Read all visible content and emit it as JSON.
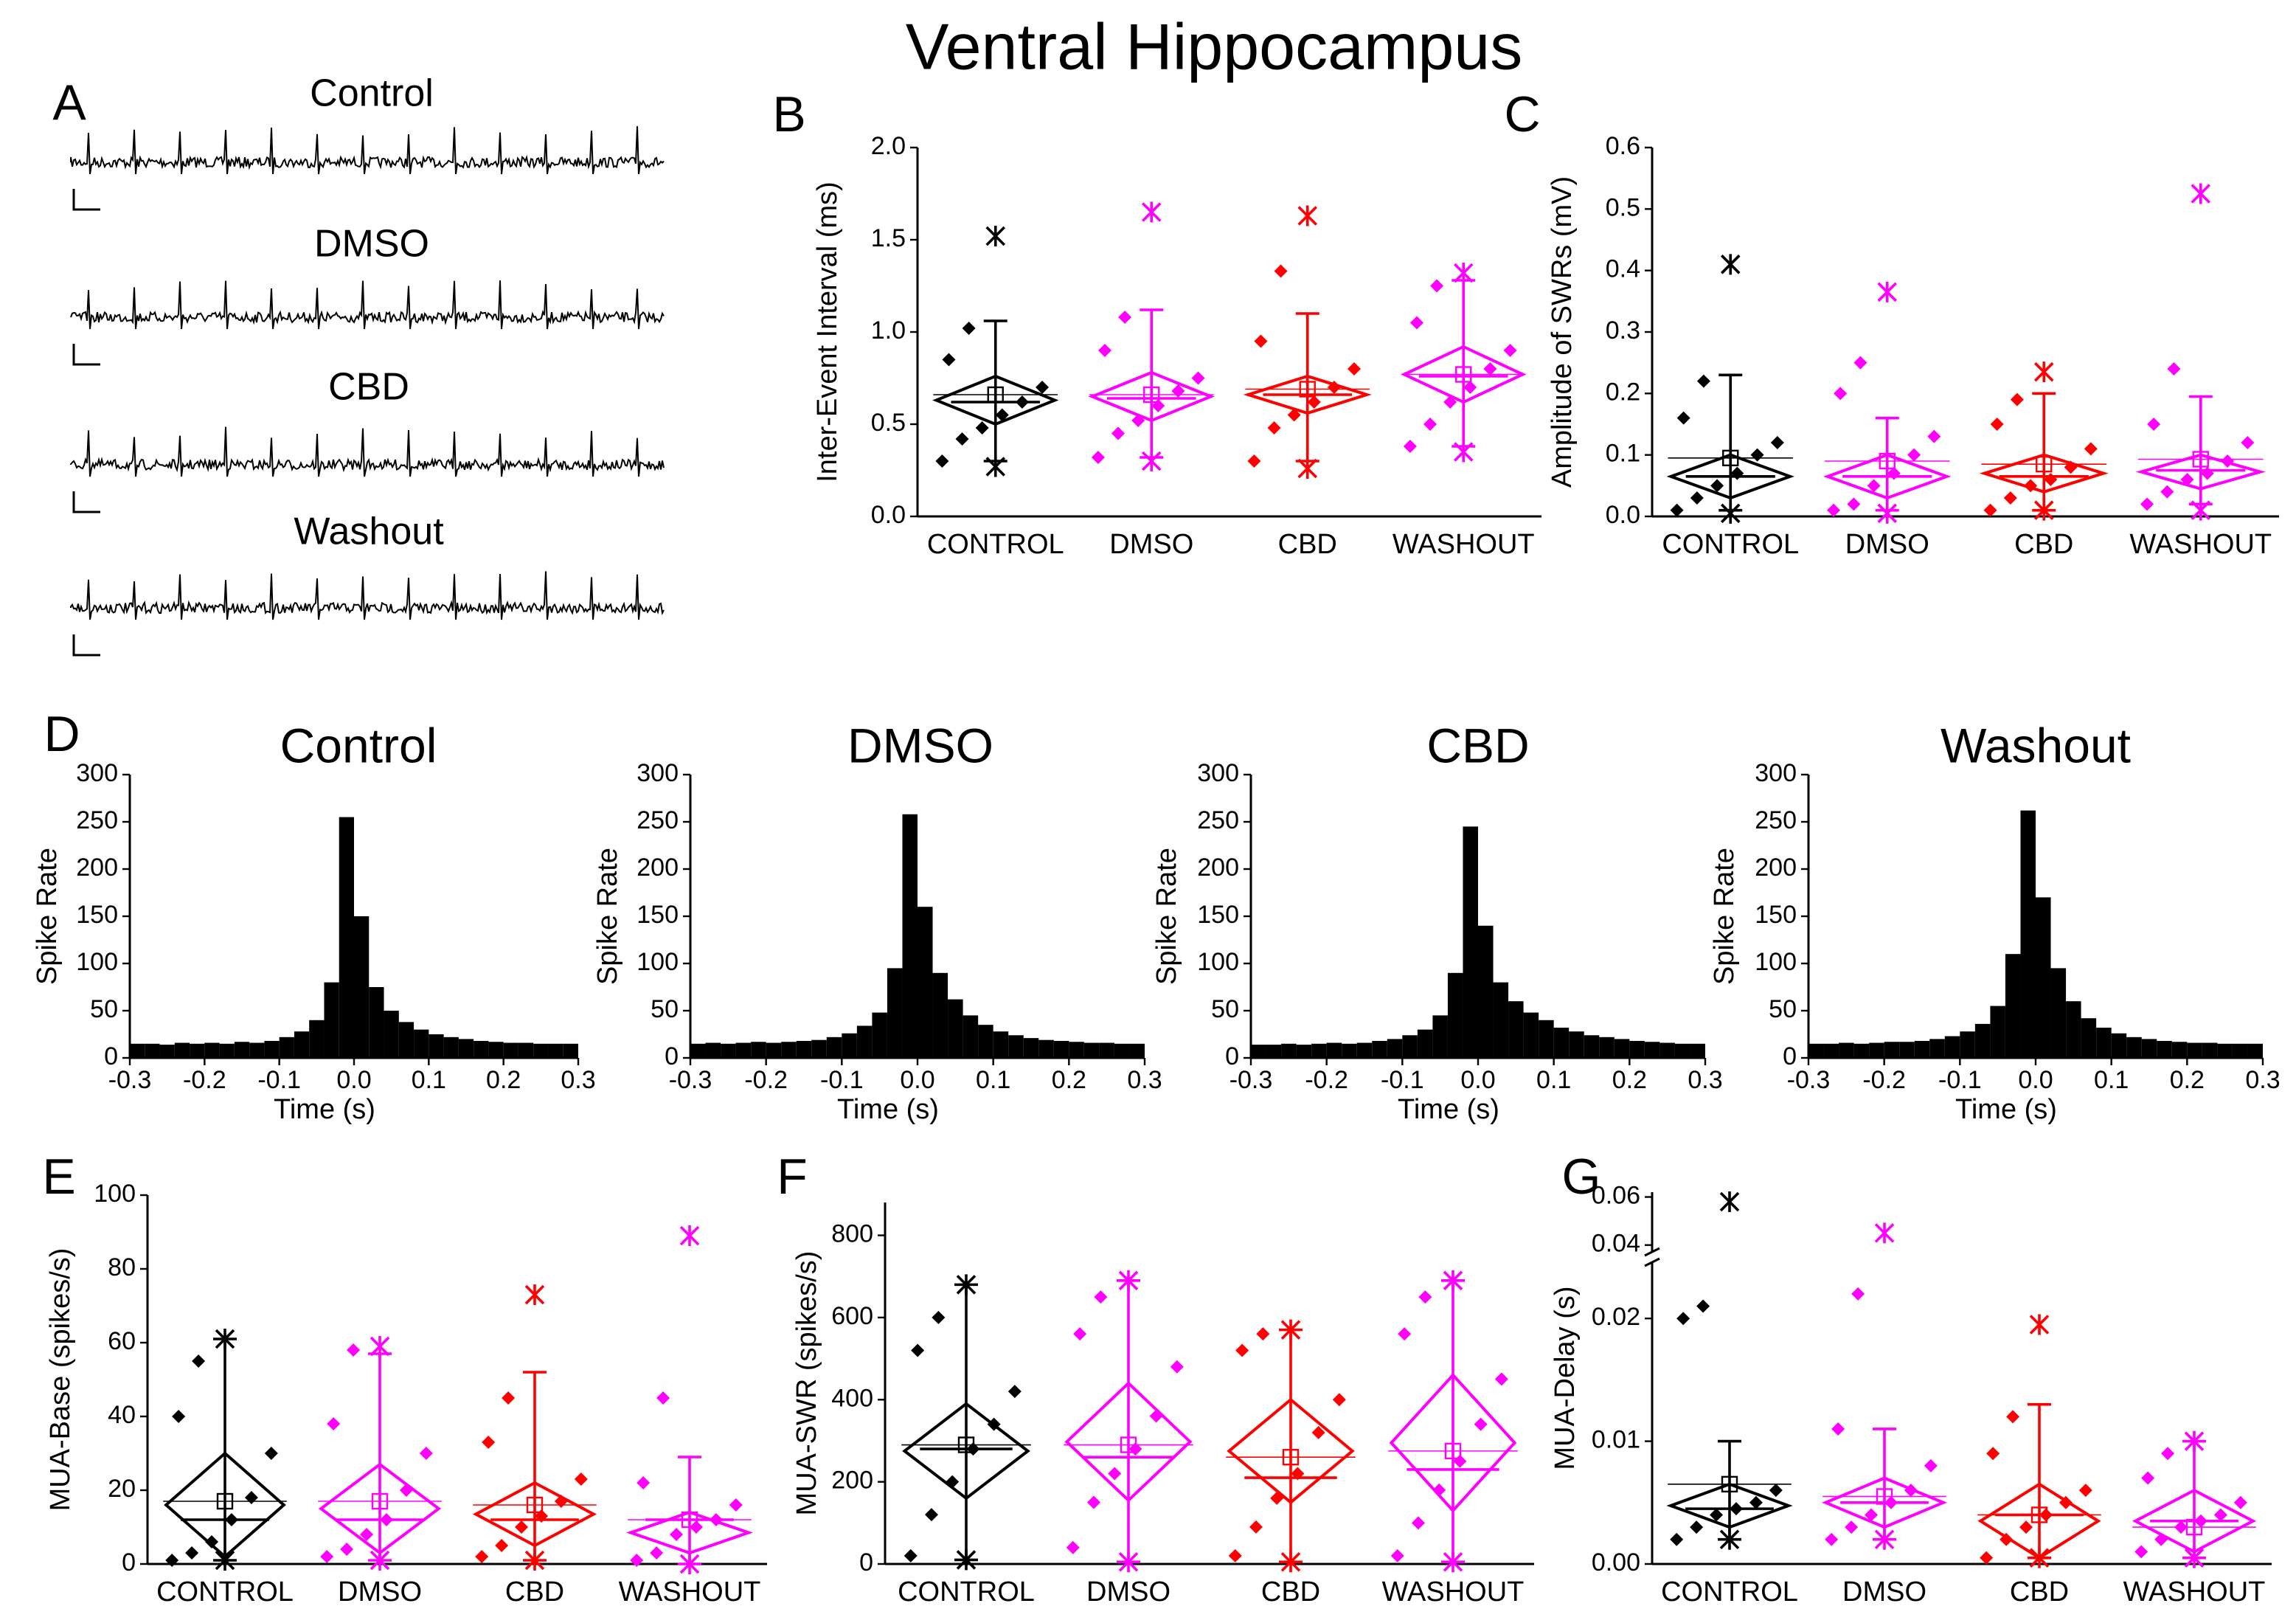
{
  "title": "Ventral Hippocampus",
  "panel_a": {
    "label": "A",
    "traces": [
      "Control",
      "DMSO",
      "CBD",
      "Washout"
    ]
  },
  "chart_data": [
    {
      "type": "box",
      "panel": "B",
      "ylabel": "Inter-Event Interval (ms)",
      "categories": [
        "CONTROL",
        "DMSO",
        "CBD",
        "WASHOUT"
      ],
      "colors": [
        "#000000",
        "#ff00ff",
        "#ff0000",
        "#ff00ff"
      ],
      "ylim": [
        0,
        2
      ],
      "yticks": [
        {
          "value": 0,
          "label": "0.0"
        },
        {
          "value": 0.5,
          "label": "0.5"
        },
        {
          "value": 1,
          "label": "1.0"
        },
        {
          "value": 1.5,
          "label": "1.5"
        },
        {
          "value": 2,
          "label": "2.0"
        }
      ],
      "groups": [
        {
          "min": 0.27,
          "whisker_low": 0.3,
          "q1": 0.5,
          "median": 0.62,
          "q3": 0.76,
          "whisker_high": 1.06,
          "max": 1.52,
          "mean": 0.66,
          "points": [
            0.3,
            0.42,
            0.48,
            0.55,
            0.62,
            0.7,
            0.85,
            1.02
          ]
        },
        {
          "min": 0.3,
          "whisker_low": 0.32,
          "q1": 0.52,
          "median": 0.64,
          "q3": 0.78,
          "whisker_high": 1.12,
          "max": 1.65,
          "mean": 0.66,
          "points": [
            0.32,
            0.45,
            0.52,
            0.6,
            0.68,
            0.75,
            0.9,
            1.08
          ]
        },
        {
          "min": 0.26,
          "whisker_low": 0.3,
          "q1": 0.56,
          "median": 0.66,
          "q3": 0.76,
          "whisker_high": 1.1,
          "max": 1.63,
          "mean": 0.69,
          "points": [
            0.3,
            0.48,
            0.55,
            0.62,
            0.7,
            0.8,
            0.95,
            1.33
          ]
        },
        {
          "min": 0.35,
          "whisker_low": 0.38,
          "q1": 0.62,
          "median": 0.76,
          "q3": 0.92,
          "whisker_high": 1.28,
          "max": 1.32,
          "mean": 0.77,
          "points": [
            0.38,
            0.5,
            0.62,
            0.7,
            0.8,
            0.9,
            1.05,
            1.25
          ]
        }
      ]
    },
    {
      "type": "box",
      "panel": "C",
      "ylabel": "Amplitude of SWRs (mV)",
      "categories": [
        "CONTROL",
        "DMSO",
        "CBD",
        "WASHOUT"
      ],
      "colors": [
        "#000000",
        "#ff00ff",
        "#ff0000",
        "#ff00ff"
      ],
      "ylim": [
        0,
        0.6
      ],
      "yticks": [
        {
          "value": 0,
          "label": "0.0"
        },
        0.1,
        0.2,
        0.3,
        0.4,
        0.5,
        0.6
      ],
      "groups": [
        {
          "min": 0.005,
          "whisker_low": 0.01,
          "q1": 0.03,
          "median": 0.065,
          "q3": 0.1,
          "whisker_high": 0.23,
          "max": 0.41,
          "mean": 0.095,
          "points": [
            0.01,
            0.03,
            0.05,
            0.07,
            0.1,
            0.12,
            0.16,
            0.22
          ]
        },
        {
          "min": 0.005,
          "whisker_low": 0.01,
          "q1": 0.03,
          "median": 0.065,
          "q3": 0.1,
          "whisker_high": 0.16,
          "max": 0.365,
          "mean": 0.09,
          "points": [
            0.01,
            0.02,
            0.05,
            0.07,
            0.1,
            0.13,
            0.2,
            0.25
          ]
        },
        {
          "min": 0.01,
          "whisker_low": 0.01,
          "q1": 0.04,
          "median": 0.065,
          "q3": 0.1,
          "whisker_high": 0.2,
          "max": 0.235,
          "mean": 0.085,
          "points": [
            0.01,
            0.03,
            0.05,
            0.06,
            0.08,
            0.11,
            0.15,
            0.19
          ]
        },
        {
          "min": 0.01,
          "whisker_low": 0.02,
          "q1": 0.045,
          "median": 0.075,
          "q3": 0.1,
          "whisker_high": 0.195,
          "max": 0.525,
          "mean": 0.093,
          "points": [
            0.02,
            0.04,
            0.06,
            0.07,
            0.09,
            0.12,
            0.15,
            0.24
          ]
        }
      ]
    },
    {
      "type": "histogram",
      "panel": "D",
      "title": "Control",
      "xlabel": "Time (s)",
      "ylabel": "Spike Rate",
      "color": "#000000",
      "bins": [
        -0.3,
        -0.28,
        -0.26,
        -0.24,
        -0.22,
        -0.2,
        -0.18,
        -0.16,
        -0.14,
        -0.12,
        -0.1,
        -0.08,
        -0.06,
        -0.04,
        -0.02,
        0,
        0.02,
        0.04,
        0.06,
        0.08,
        0.1,
        0.12,
        0.14,
        0.16,
        0.18,
        0.2,
        0.22,
        0.24,
        0.26,
        0.28,
        0.3
      ],
      "values": [
        15,
        15,
        14,
        16,
        15,
        16,
        15,
        17,
        16,
        18,
        22,
        28,
        40,
        80,
        255,
        150,
        75,
        50,
        38,
        30,
        25,
        22,
        20,
        18,
        17,
        16,
        16,
        15,
        15,
        15
      ],
      "xlim": [
        -0.3,
        0.3
      ],
      "xticks": [
        -0.3,
        -0.2,
        -0.1,
        {
          "value": 0,
          "label": "0.0"
        },
        0.1,
        0.2,
        0.3
      ],
      "ylim": [
        0,
        300
      ],
      "yticks": [
        0,
        50,
        100,
        150,
        200,
        250,
        300
      ]
    },
    {
      "type": "histogram",
      "title": "DMSO",
      "xlabel": "Time (s)",
      "ylabel": "Spike Rate",
      "color": "#000000",
      "bins": [
        -0.3,
        -0.28,
        -0.26,
        -0.24,
        -0.22,
        -0.2,
        -0.18,
        -0.16,
        -0.14,
        -0.12,
        -0.1,
        -0.08,
        -0.06,
        -0.04,
        -0.02,
        0,
        0.02,
        0.04,
        0.06,
        0.08,
        0.1,
        0.12,
        0.14,
        0.16,
        0.18,
        0.2,
        0.22,
        0.24,
        0.26,
        0.28,
        0.3
      ],
      "values": [
        15,
        16,
        15,
        16,
        17,
        16,
        17,
        18,
        19,
        22,
        26,
        34,
        48,
        95,
        258,
        160,
        90,
        62,
        45,
        35,
        28,
        24,
        21,
        19,
        18,
        17,
        16,
        16,
        15,
        15
      ],
      "xlim": [
        -0.3,
        0.3
      ],
      "xticks": [
        -0.3,
        -0.2,
        -0.1,
        {
          "value": 0,
          "label": "0.0"
        },
        0.1,
        0.2,
        0.3
      ],
      "ylim": [
        0,
        300
      ],
      "yticks": [
        0,
        50,
        100,
        150,
        200,
        250,
        300
      ]
    },
    {
      "type": "histogram",
      "title": "CBD",
      "xlabel": "Time (s)",
      "ylabel": "Spike Rate",
      "color": "#000000",
      "bins": [
        -0.3,
        -0.28,
        -0.26,
        -0.24,
        -0.22,
        -0.2,
        -0.18,
        -0.16,
        -0.14,
        -0.12,
        -0.1,
        -0.08,
        -0.06,
        -0.04,
        -0.02,
        0,
        0.02,
        0.04,
        0.06,
        0.08,
        0.1,
        0.12,
        0.14,
        0.16,
        0.18,
        0.2,
        0.22,
        0.24,
        0.26,
        0.28,
        0.3
      ],
      "values": [
        14,
        14,
        15,
        14,
        15,
        16,
        15,
        16,
        18,
        20,
        24,
        30,
        45,
        90,
        245,
        140,
        80,
        60,
        48,
        40,
        32,
        28,
        24,
        22,
        20,
        18,
        17,
        16,
        15,
        15
      ],
      "xlim": [
        -0.3,
        0.3
      ],
      "xticks": [
        -0.3,
        -0.2,
        -0.1,
        {
          "value": 0,
          "label": "0.0"
        },
        0.1,
        0.2,
        0.3
      ],
      "ylim": [
        0,
        300
      ],
      "yticks": [
        0,
        50,
        100,
        150,
        200,
        250,
        300
      ]
    },
    {
      "type": "histogram",
      "title": "Washout",
      "xlabel": "Time (s)",
      "ylabel": "Spike Rate",
      "color": "#000000",
      "bins": [
        -0.3,
        -0.28,
        -0.26,
        -0.24,
        -0.22,
        -0.2,
        -0.18,
        -0.16,
        -0.14,
        -0.12,
        -0.1,
        -0.08,
        -0.06,
        -0.04,
        -0.02,
        0,
        0.02,
        0.04,
        0.06,
        0.08,
        0.1,
        0.12,
        0.14,
        0.16,
        0.18,
        0.2,
        0.22,
        0.24,
        0.26,
        0.28,
        0.3
      ],
      "values": [
        15,
        15,
        16,
        15,
        16,
        17,
        17,
        18,
        20,
        23,
        28,
        36,
        55,
        110,
        262,
        170,
        95,
        60,
        42,
        32,
        26,
        22,
        20,
        18,
        17,
        16,
        16,
        15,
        15,
        15
      ],
      "xlim": [
        -0.3,
        0.3
      ],
      "xticks": [
        -0.3,
        -0.2,
        -0.1,
        {
          "value": 0,
          "label": "0.0"
        },
        0.1,
        0.2,
        0.3
      ],
      "ylim": [
        0,
        300
      ],
      "yticks": [
        0,
        50,
        100,
        150,
        200,
        250,
        300
      ]
    },
    {
      "type": "box",
      "panel": "E",
      "ylabel": "MUA-Base (spikes/s)",
      "categories": [
        "CONTROL",
        "DMSO",
        "CBD",
        "WASHOUT"
      ],
      "colors": [
        "#000000",
        "#ff00ff",
        "#ff0000",
        "#ff00ff"
      ],
      "ylim": [
        0,
        100
      ],
      "yticks": [
        0,
        20,
        40,
        60,
        80,
        100
      ],
      "groups": [
        {
          "min": 1,
          "whisker_low": 1,
          "q1": 2,
          "median": 12,
          "q3": 30,
          "whisker_high": 61,
          "max": 61,
          "mean": 17,
          "points": [
            1,
            3,
            6,
            12,
            18,
            30,
            40,
            55
          ]
        },
        {
          "min": 1,
          "whisker_low": 1,
          "q1": 3,
          "median": 12,
          "q3": 27,
          "whisker_high": 57,
          "max": 59,
          "mean": 17,
          "points": [
            2,
            4,
            8,
            12,
            20,
            30,
            38,
            58
          ]
        },
        {
          "min": 1,
          "whisker_low": 1,
          "q1": 5,
          "median": 12,
          "q3": 22,
          "whisker_high": 52,
          "max": 73,
          "mean": 16,
          "points": [
            2,
            5,
            10,
            13,
            17,
            23,
            33,
            45
          ]
        },
        {
          "min": 0,
          "whisker_low": 0,
          "q1": 3,
          "median": 12,
          "q3": 14,
          "whisker_high": 29,
          "max": 89,
          "mean": 12,
          "points": [
            1,
            3,
            8,
            10,
            12,
            16,
            22,
            45
          ]
        }
      ]
    },
    {
      "type": "box",
      "panel": "F",
      "ylabel": "MUA-SWR (spikes/s)",
      "categories": [
        "CONTROL",
        "DMSO",
        "CBD",
        "WASHOUT"
      ],
      "colors": [
        "#000000",
        "#ff00ff",
        "#ff0000",
        "#ff00ff"
      ],
      "ylim": [
        0,
        880
      ],
      "yticks": [
        0,
        200,
        400,
        600,
        800
      ],
      "groups": [
        {
          "min": 10,
          "whisker_low": 10,
          "q1": 160,
          "median": 280,
          "q3": 390,
          "whisker_high": 680,
          "max": 680,
          "mean": 290,
          "points": [
            20,
            120,
            200,
            280,
            340,
            420,
            520,
            600
          ]
        },
        {
          "min": 5,
          "whisker_low": 5,
          "q1": 155,
          "median": 260,
          "q3": 440,
          "whisker_high": 690,
          "max": 690,
          "mean": 290,
          "points": [
            40,
            150,
            220,
            280,
            360,
            480,
            560,
            650
          ]
        },
        {
          "min": 5,
          "whisker_low": 5,
          "q1": 150,
          "median": 210,
          "q3": 400,
          "whisker_high": 570,
          "max": 570,
          "mean": 260,
          "points": [
            20,
            90,
            160,
            220,
            320,
            400,
            520,
            560
          ]
        },
        {
          "min": 5,
          "whisker_low": 5,
          "q1": 130,
          "median": 230,
          "q3": 460,
          "whisker_high": 690,
          "max": 690,
          "mean": 275,
          "points": [
            20,
            100,
            180,
            250,
            340,
            450,
            560,
            650
          ]
        }
      ]
    },
    {
      "type": "box",
      "panel": "G",
      "ylabel": "MUA-Delay (s)",
      "categories": [
        "CONTROL",
        "DMSO",
        "CBD",
        "WASHOUT"
      ],
      "colors": [
        "#000000",
        "#ff00ff",
        "#ff0000",
        "#ff00ff"
      ],
      "ylim": [
        0,
        0.062
      ],
      "ybreak": [
        0.025,
        0.035
      ],
      "yticks": [
        {
          "value": 0,
          "label": "0.00"
        },
        {
          "value": 0.01,
          "label": "0.01"
        },
        {
          "value": 0.02,
          "label": "0.02"
        },
        {
          "value": 0.04,
          "label": "0.04"
        },
        {
          "value": 0.06,
          "label": "0.06"
        }
      ],
      "groups": [
        {
          "min": 0.002,
          "whisker_low": 0.002,
          "q1": 0.003,
          "median": 0.0045,
          "q3": 0.0065,
          "whisker_high": 0.01,
          "max": 0.058,
          "mean": 0.0065,
          "points": [
            0.002,
            0.003,
            0.004,
            0.0045,
            0.005,
            0.006,
            0.02,
            0.021
          ]
        },
        {
          "min": 0.002,
          "whisker_low": 0.002,
          "q1": 0.003,
          "median": 0.005,
          "q3": 0.007,
          "whisker_high": 0.011,
          "max": 0.045,
          "mean": 0.0055,
          "points": [
            0.002,
            0.003,
            0.004,
            0.005,
            0.006,
            0.008,
            0.011,
            0.022
          ]
        },
        {
          "min": 0.0005,
          "whisker_low": 0.0005,
          "q1": 0.0005,
          "median": 0.004,
          "q3": 0.0065,
          "whisker_high": 0.013,
          "max": 0.0195,
          "mean": 0.004,
          "points": [
            0.0005,
            0.002,
            0.003,
            0.004,
            0.005,
            0.006,
            0.009,
            0.012
          ]
        },
        {
          "min": 0.0005,
          "whisker_low": 0.0005,
          "q1": 0.001,
          "median": 0.0035,
          "q3": 0.006,
          "whisker_high": 0.01,
          "max": 0.01,
          "mean": 0.003,
          "points": [
            0.001,
            0.002,
            0.003,
            0.0035,
            0.004,
            0.005,
            0.007,
            0.009
          ]
        }
      ]
    }
  ]
}
